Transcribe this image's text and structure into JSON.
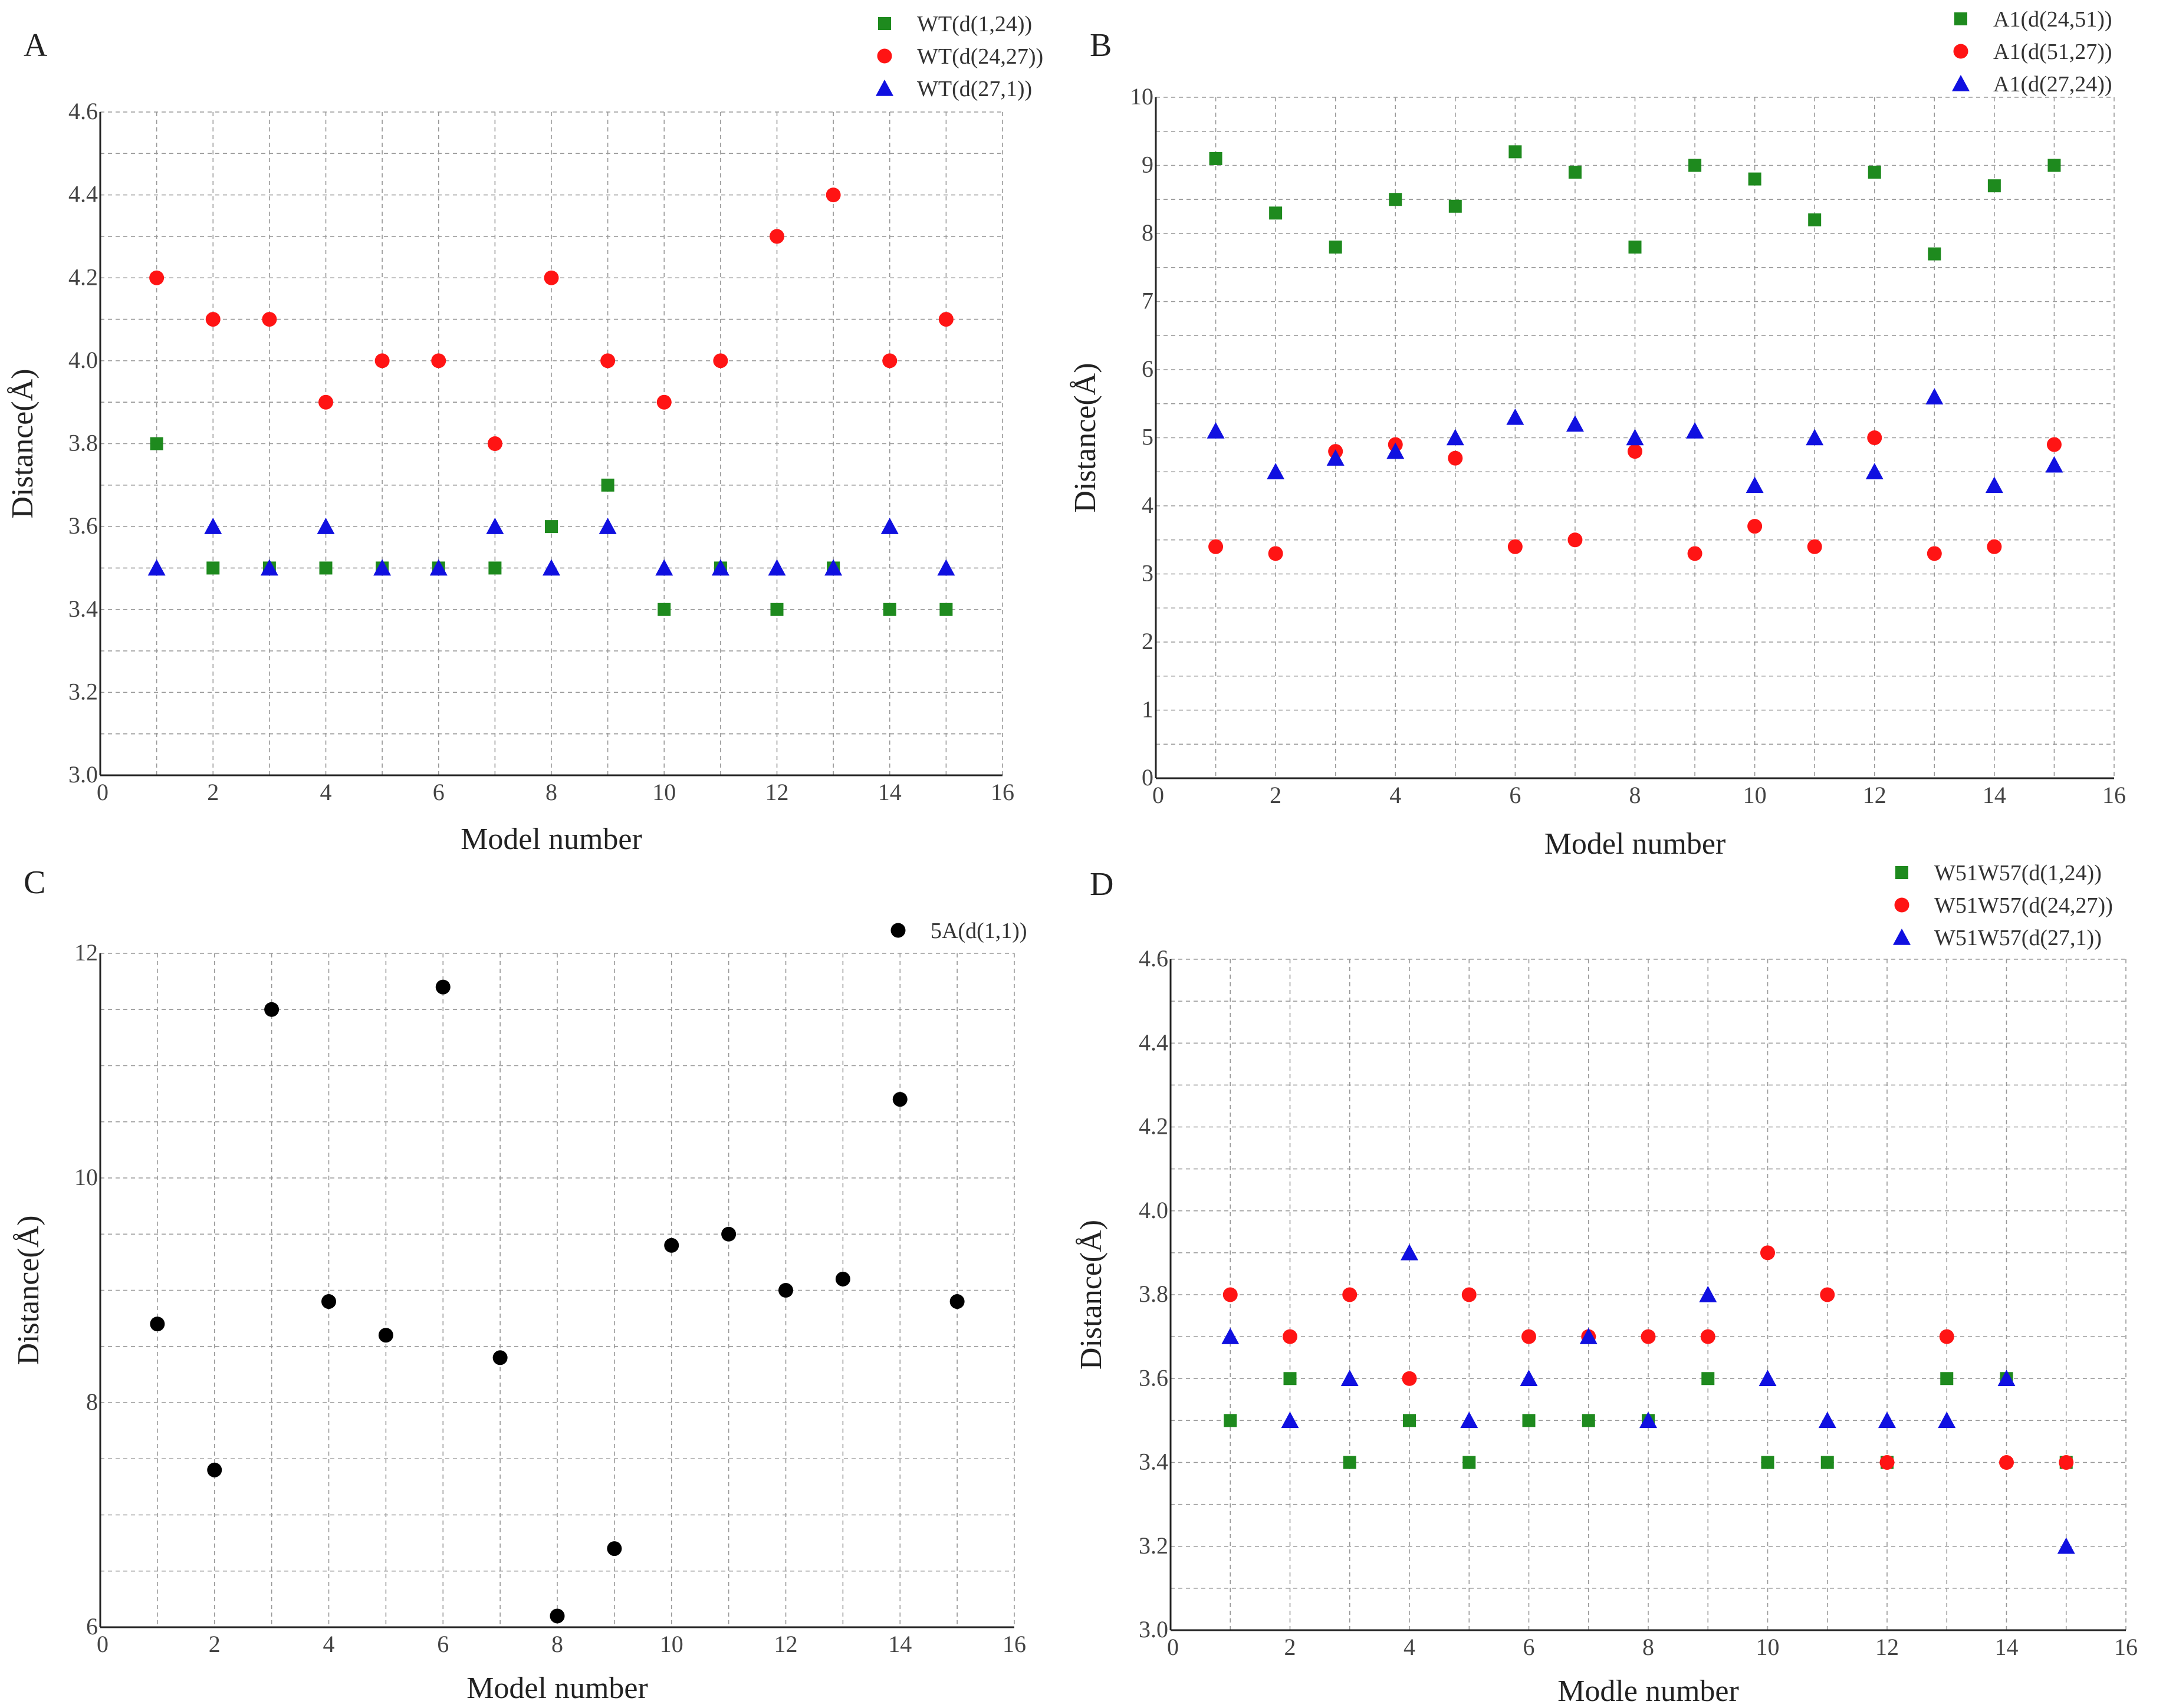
{
  "figure": {
    "colors": {
      "square": "#1e8a1e",
      "circle": "#ff1414",
      "triangle": "#1010e0",
      "black": "#000000",
      "grid": "#999999",
      "axis": "#222222"
    }
  },
  "chart_data": [
    {
      "panel": "A",
      "type": "scatter",
      "xlabel": "Model number",
      "ylabel": "Distance(Å)",
      "xlim": [
        0,
        16
      ],
      "ylim": [
        3.0,
        4.6
      ],
      "xticks": [
        0,
        2,
        4,
        6,
        8,
        10,
        12,
        14,
        16
      ],
      "yticks": [
        3.0,
        3.2,
        3.4,
        3.6,
        3.8,
        4.0,
        4.2,
        4.4,
        4.6
      ],
      "ytick_labels": [
        "3.0",
        "3.2",
        "3.4",
        "3.6",
        "3.8",
        "4.0",
        "4.2",
        "4.4",
        "4.6"
      ],
      "legend_position": "top-right",
      "series": [
        {
          "name": "WT(d(1,24))",
          "marker": "square",
          "color": "#1e8a1e",
          "x": [
            1,
            2,
            3,
            4,
            5,
            6,
            7,
            8,
            9,
            10,
            11,
            12,
            13,
            14,
            15
          ],
          "y": [
            3.8,
            3.5,
            3.5,
            3.5,
            3.5,
            3.5,
            3.5,
            3.6,
            3.7,
            3.4,
            3.5,
            3.4,
            3.5,
            3.4,
            3.4
          ]
        },
        {
          "name": "WT(d(24,27))",
          "marker": "circle",
          "color": "#ff1414",
          "x": [
            1,
            2,
            3,
            4,
            5,
            6,
            7,
            8,
            9,
            10,
            11,
            12,
            13,
            14,
            15
          ],
          "y": [
            4.2,
            4.1,
            4.1,
            3.9,
            4.0,
            4.0,
            3.8,
            4.2,
            4.0,
            3.9,
            4.0,
            4.3,
            4.4,
            4.0,
            4.1
          ]
        },
        {
          "name": "WT(d(27,1))",
          "marker": "triangle",
          "color": "#1010e0",
          "x": [
            1,
            2,
            3,
            4,
            5,
            6,
            7,
            8,
            9,
            10,
            11,
            12,
            13,
            14,
            15
          ],
          "y": [
            3.5,
            3.6,
            3.5,
            3.6,
            3.5,
            3.5,
            3.6,
            3.5,
            3.6,
            3.5,
            3.5,
            3.5,
            3.5,
            3.6,
            3.5
          ]
        }
      ]
    },
    {
      "panel": "B",
      "type": "scatter",
      "xlabel": "Model number",
      "ylabel": "Distance(Å)",
      "xlim": [
        0,
        16
      ],
      "ylim": [
        0,
        10
      ],
      "xticks": [
        0,
        2,
        4,
        6,
        8,
        10,
        12,
        14,
        16
      ],
      "yticks": [
        0,
        1,
        2,
        3,
        4,
        5,
        6,
        7,
        8,
        9,
        10
      ],
      "ytick_labels": [
        "0",
        "1",
        "2",
        "3",
        "4",
        "5",
        "6",
        "7",
        "8",
        "9",
        "10"
      ],
      "legend_position": "top-right",
      "series": [
        {
          "name": "A1(d(24,51))",
          "marker": "square",
          "color": "#1e8a1e",
          "x": [
            1,
            2,
            3,
            4,
            5,
            6,
            7,
            8,
            9,
            10,
            11,
            12,
            13,
            14,
            15
          ],
          "y": [
            9.1,
            8.3,
            7.8,
            8.5,
            8.4,
            9.2,
            8.9,
            7.8,
            9.0,
            8.8,
            8.2,
            8.9,
            7.7,
            8.7,
            9.0
          ]
        },
        {
          "name": "A1(d(51,27))",
          "marker": "circle",
          "color": "#ff1414",
          "x": [
            1,
            2,
            3,
            4,
            5,
            6,
            7,
            8,
            9,
            10,
            11,
            12,
            13,
            14,
            15
          ],
          "y": [
            3.4,
            3.3,
            4.8,
            4.9,
            4.7,
            3.4,
            3.5,
            4.8,
            3.3,
            3.7,
            3.4,
            5.0,
            3.3,
            3.4,
            4.9
          ]
        },
        {
          "name": "A1(d(27,24))",
          "marker": "triangle",
          "color": "#1010e0",
          "x": [
            1,
            2,
            3,
            4,
            5,
            6,
            7,
            8,
            9,
            10,
            11,
            12,
            13,
            14,
            15
          ],
          "y": [
            5.1,
            4.5,
            4.7,
            4.8,
            5.0,
            5.3,
            5.2,
            5.0,
            5.1,
            4.3,
            5.0,
            4.5,
            5.6,
            4.3,
            4.6
          ]
        }
      ]
    },
    {
      "panel": "C",
      "type": "scatter",
      "xlabel": "Model number",
      "ylabel": "Distance(Å)",
      "xlim": [
        0,
        16
      ],
      "ylim": [
        6,
        12
      ],
      "xticks": [
        0,
        2,
        4,
        6,
        8,
        10,
        12,
        14,
        16
      ],
      "yticks": [
        6,
        7,
        8,
        9,
        10,
        11,
        12
      ],
      "ytick_labels": [
        "6",
        "",
        "8",
        "",
        "10",
        "",
        "12"
      ],
      "legend_position": "top-right",
      "series": [
        {
          "name": "5A(d(1,1))",
          "marker": "circle",
          "color": "#000000",
          "x": [
            1,
            2,
            3,
            4,
            5,
            6,
            7,
            8,
            9,
            10,
            11,
            12,
            13,
            14,
            15
          ],
          "y": [
            8.7,
            7.4,
            11.5,
            8.9,
            8.6,
            11.7,
            8.4,
            6.1,
            6.7,
            9.4,
            9.5,
            9.0,
            9.1,
            10.7,
            8.9
          ]
        }
      ]
    },
    {
      "panel": "D",
      "type": "scatter",
      "xlabel": "Modle number",
      "ylabel": "Distance(Å)",
      "xlim": [
        0,
        16
      ],
      "ylim": [
        3.0,
        4.6
      ],
      "xticks": [
        0,
        2,
        4,
        6,
        8,
        10,
        12,
        14,
        16
      ],
      "yticks": [
        3.0,
        3.2,
        3.4,
        3.6,
        3.8,
        4.0,
        4.2,
        4.4,
        4.6
      ],
      "ytick_labels": [
        "3.0",
        "3.2",
        "3.4",
        "3.6",
        "3.8",
        "4.0",
        "4.2",
        "4.4",
        "4.6"
      ],
      "legend_position": "top-right",
      "series": [
        {
          "name": "W51W57(d(1,24))",
          "marker": "square",
          "color": "#1e8a1e",
          "x": [
            1,
            2,
            3,
            4,
            5,
            6,
            7,
            8,
            9,
            10,
            11,
            12,
            13,
            14,
            15
          ],
          "y": [
            3.5,
            3.6,
            3.4,
            3.5,
            3.4,
            3.5,
            3.5,
            3.5,
            3.6,
            3.4,
            3.4,
            3.4,
            3.6,
            3.6,
            3.4
          ]
        },
        {
          "name": "W51W57(d(24,27))",
          "marker": "circle",
          "color": "#ff1414",
          "x": [
            1,
            2,
            3,
            4,
            5,
            6,
            7,
            8,
            9,
            10,
            11,
            12,
            13,
            14,
            15
          ],
          "y": [
            3.8,
            3.7,
            3.8,
            3.6,
            3.8,
            3.7,
            3.7,
            3.7,
            3.7,
            3.9,
            3.8,
            3.4,
            3.7,
            3.4,
            3.4
          ]
        },
        {
          "name": "W51W57(d(27,1))",
          "marker": "triangle",
          "color": "#1010e0",
          "x": [
            1,
            2,
            3,
            4,
            5,
            6,
            7,
            8,
            9,
            10,
            11,
            12,
            13,
            14,
            15
          ],
          "y": [
            3.7,
            3.5,
            3.6,
            3.9,
            3.5,
            3.6,
            3.7,
            3.5,
            3.8,
            3.6,
            3.5,
            3.5,
            3.5,
            3.6,
            3.2
          ]
        }
      ]
    }
  ]
}
